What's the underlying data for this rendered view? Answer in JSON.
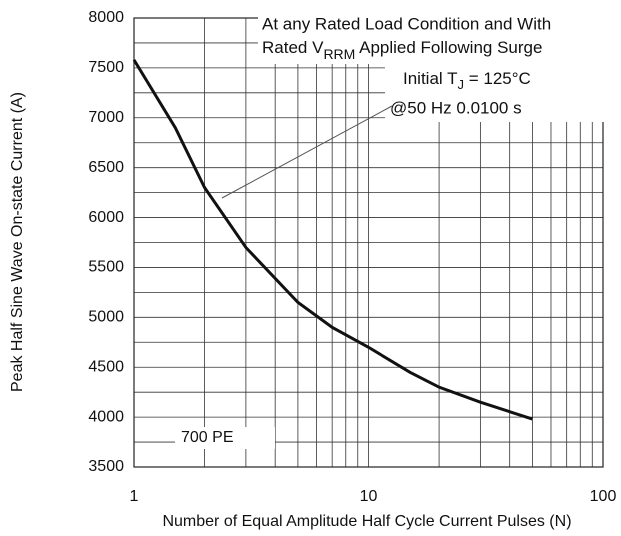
{
  "chart_data": {
    "type": "line",
    "xlabel": "Number of Equal Amplitude Half Cycle Current Pulses (N)",
    "ylabel": "Peak Half Sine Wave On-state Current (A)",
    "x": [
      1,
      1.5,
      2,
      3,
      5,
      7,
      10,
      15,
      20,
      30,
      50
    ],
    "series": [
      {
        "color": "#111111",
        "values": [
          7580,
          6900,
          6300,
          5700,
          5150,
          4900,
          4700,
          4450,
          4300,
          4150,
          3980
        ]
      }
    ],
    "xlim": [
      1,
      100
    ],
    "xticks": [
      1,
      10,
      100
    ],
    "xscale": "log",
    "ylim": [
      3500,
      8000
    ],
    "yticks": [
      3500,
      4000,
      4500,
      5000,
      5500,
      6000,
      6500,
      7000,
      7500,
      8000
    ],
    "yminor": [
      3750,
      4250,
      4750,
      5250,
      5750,
      6250,
      6750,
      7250,
      7750
    ],
    "grid": true,
    "annotations": {
      "line1": "At any Rated Load Condition and With",
      "line2": {
        "text": "Rated V",
        "sub": "RRM",
        "rest": " Applied Following Surge"
      },
      "line3": {
        "text": "Initial T",
        "sub": "J",
        "rest": " = 125°C"
      },
      "line4": "@50 Hz 0.0100 s",
      "part": "700 PE"
    }
  }
}
